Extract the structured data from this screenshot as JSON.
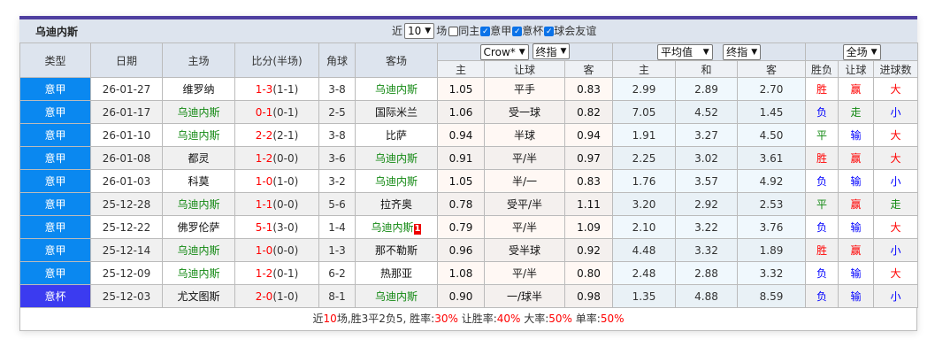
{
  "title": "乌迪内斯",
  "filters": {
    "near_label": "近",
    "count": "10",
    "unit": "场",
    "checks": [
      {
        "label": "同主",
        "checked": false
      },
      {
        "label": "意甲",
        "checked": true
      },
      {
        "label": "意杯",
        "checked": true
      },
      {
        "label": "球会友谊",
        "checked": true
      }
    ]
  },
  "headers": {
    "type": "类型",
    "date": "日期",
    "home": "主场",
    "score": "比分(半场)",
    "corner": "角球",
    "away": "客场",
    "company_select": "Crow*",
    "odds_select1": "终指",
    "avg_select": "平均值",
    "odds_select2": "终指",
    "period_select": "全场",
    "sub": [
      "主",
      "让球",
      "客",
      "主",
      "和",
      "客",
      "胜负",
      "让球",
      "进球数"
    ]
  },
  "rows": [
    {
      "type": "意甲",
      "date": "26-01-27",
      "home": "维罗纳",
      "away": "乌迪内斯",
      "hl": "away",
      "ft": "1-3",
      "ht": "(1-1)",
      "corner": "3-8",
      "o": [
        "1.05",
        "平手",
        "0.83",
        "2.99",
        "2.89",
        "2.70"
      ],
      "r": [
        "胜",
        "赢",
        "大"
      ]
    },
    {
      "type": "意甲",
      "date": "26-01-17",
      "home": "乌迪内斯",
      "away": "国际米兰",
      "hl": "home",
      "ft": "0-1",
      "ht": "(0-1)",
      "corner": "2-5",
      "o": [
        "1.06",
        "受一球",
        "0.82",
        "7.05",
        "4.52",
        "1.45"
      ],
      "r": [
        "负",
        "走",
        "小"
      ]
    },
    {
      "type": "意甲",
      "date": "26-01-10",
      "home": "乌迪内斯",
      "away": "比萨",
      "hl": "home",
      "ft": "2-2",
      "ht": "(2-1)",
      "corner": "3-8",
      "o": [
        "0.94",
        "半球",
        "0.94",
        "1.91",
        "3.27",
        "4.50"
      ],
      "r": [
        "平",
        "输",
        "大"
      ]
    },
    {
      "type": "意甲",
      "date": "26-01-08",
      "home": "都灵",
      "away": "乌迪内斯",
      "hl": "away",
      "ft": "1-2",
      "ht": "(0-0)",
      "corner": "3-6",
      "o": [
        "0.91",
        "平/半",
        "0.97",
        "2.25",
        "3.02",
        "3.61"
      ],
      "r": [
        "胜",
        "赢",
        "大"
      ]
    },
    {
      "type": "意甲",
      "date": "26-01-03",
      "home": "科莫",
      "away": "乌迪内斯",
      "hl": "away",
      "ft": "1-0",
      "ht": "(1-0)",
      "corner": "3-2",
      "o": [
        "1.05",
        "半/一",
        "0.83",
        "1.76",
        "3.57",
        "4.92"
      ],
      "r": [
        "负",
        "输",
        "小"
      ]
    },
    {
      "type": "意甲",
      "date": "25-12-28",
      "home": "乌迪内斯",
      "away": "拉齐奥",
      "hl": "home",
      "ft": "1-1",
      "ht": "(0-0)",
      "corner": "5-6",
      "o": [
        "0.78",
        "受平/半",
        "1.11",
        "3.20",
        "2.92",
        "2.53"
      ],
      "r": [
        "平",
        "赢",
        "走"
      ]
    },
    {
      "type": "意甲",
      "date": "25-12-22",
      "home": "佛罗伦萨",
      "away": "乌迪内斯",
      "hl": "away",
      "red_card": "1",
      "ft": "5-1",
      "ht": "(3-0)",
      "corner": "1-4",
      "o": [
        "0.79",
        "平/半",
        "1.09",
        "2.10",
        "3.22",
        "3.76"
      ],
      "r": [
        "负",
        "输",
        "大"
      ]
    },
    {
      "type": "意甲",
      "date": "25-12-14",
      "home": "乌迪内斯",
      "away": "那不勒斯",
      "hl": "home",
      "ft": "1-0",
      "ht": "(0-0)",
      "corner": "1-3",
      "o": [
        "0.96",
        "受半球",
        "0.92",
        "4.48",
        "3.32",
        "1.89"
      ],
      "r": [
        "胜",
        "赢",
        "小"
      ]
    },
    {
      "type": "意甲",
      "date": "25-12-09",
      "home": "乌迪内斯",
      "away": "热那亚",
      "hl": "home",
      "ft": "1-2",
      "ht": "(0-1)",
      "corner": "6-2",
      "o": [
        "1.08",
        "平/半",
        "0.80",
        "2.48",
        "2.88",
        "3.32"
      ],
      "r": [
        "负",
        "输",
        "大"
      ]
    },
    {
      "type": "意杯",
      "date": "25-12-03",
      "home": "尤文图斯",
      "away": "乌迪内斯",
      "hl": "away",
      "ft": "2-0",
      "ht": "(1-0)",
      "corner": "8-1",
      "o": [
        "0.90",
        "一/球半",
        "0.98",
        "1.35",
        "4.88",
        "8.59"
      ],
      "r": [
        "负",
        "输",
        "小"
      ]
    }
  ],
  "summary": {
    "p1": "近",
    "n": "10",
    "p2": "场,胜3平2负5, 胜率:",
    "win": "30%",
    "p3": " 让胜率:",
    "hwin": "40%",
    "p4": " 大率:",
    "big": "50%",
    "p5": " 单率:",
    "odd": "50%"
  },
  "colors": {
    "win": "#ff0000",
    "lose": "#0000ff",
    "draw": "#118811",
    "team": "#118811",
    "league": "#0a88f0",
    "cup": "#3b3bf0"
  }
}
